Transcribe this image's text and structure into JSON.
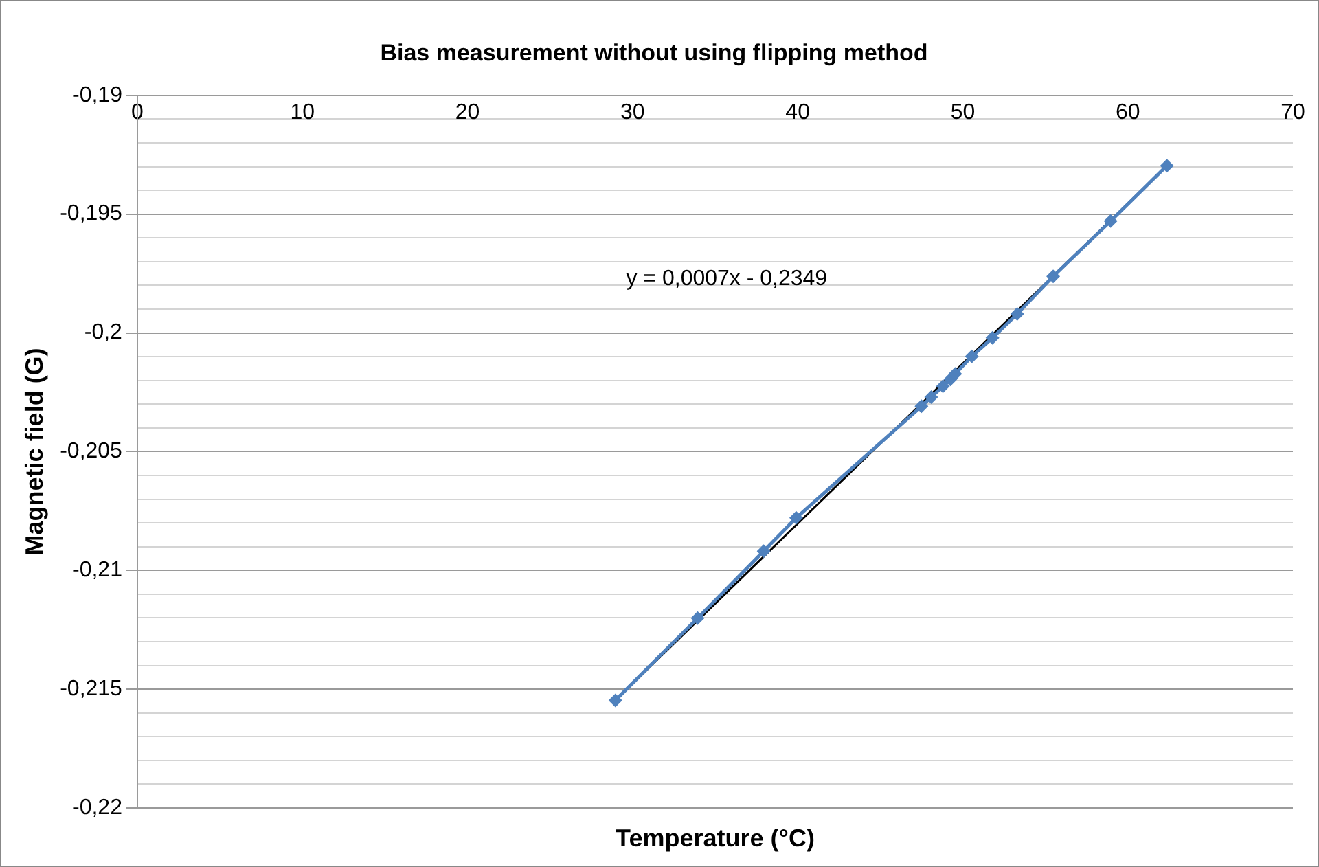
{
  "chart_data": {
    "type": "line",
    "title": "Bias measurement without using flipping method",
    "xlabel": "Temperature (°C)",
    "ylabel": "Magnetic field (G)",
    "annotations": [
      "y = 0,0007x - 0,2349"
    ],
    "series": [
      {
        "type": "line",
        "color": "#4f81bd",
        "marker": "diamond",
        "x": [
          28.96,
          33.94,
          37.94,
          39.91,
          47.5,
          48.09,
          48.8,
          49.25,
          49.54,
          50.55,
          51.8,
          53.3,
          55.48,
          58.96,
          62.37
        ],
        "values": [
          -0.21547,
          -0.21201,
          -0.20919,
          -0.20779,
          -0.20309,
          -0.2027,
          -0.20225,
          -0.20196,
          -0.20173,
          -0.20099,
          -0.20021,
          -0.1992,
          -0.19762,
          -0.19529,
          -0.19296
        ]
      },
      {
        "type": "line",
        "color": "#000000",
        "marker": "none",
        "x": [
          28.96,
          62.37
        ],
        "values": [
          -0.21547,
          -0.19296
        ]
      }
    ],
    "xlim": [
      0,
      70
    ],
    "xticks": [
      0,
      10,
      20,
      30,
      40,
      50,
      60,
      70
    ],
    "ylim": [
      -0.22,
      -0.19
    ],
    "yticks": [
      {
        "value": -0.22,
        "label": "-0,22"
      },
      {
        "value": -0.219,
        "label": null
      },
      {
        "value": -0.218,
        "label": null
      },
      {
        "value": -0.217,
        "label": null
      },
      {
        "value": -0.216,
        "label": null
      },
      {
        "value": -0.215,
        "label": "-0,215"
      },
      {
        "value": -0.214,
        "label": null
      },
      {
        "value": -0.213,
        "label": null
      },
      {
        "value": -0.212,
        "label": null
      },
      {
        "value": -0.211,
        "label": null
      },
      {
        "value": -0.21,
        "label": "-0,21"
      },
      {
        "value": -0.209,
        "label": null
      },
      {
        "value": -0.208,
        "label": null
      },
      {
        "value": -0.207,
        "label": null
      },
      {
        "value": -0.206,
        "label": null
      },
      {
        "value": -0.205,
        "label": "-0,205"
      },
      {
        "value": -0.204,
        "label": null
      },
      {
        "value": -0.203,
        "label": null
      },
      {
        "value": -0.202,
        "label": null
      },
      {
        "value": -0.201,
        "label": null
      },
      {
        "value": -0.2,
        "label": "-0,2"
      },
      {
        "value": -0.199,
        "label": null
      },
      {
        "value": -0.198,
        "label": null
      },
      {
        "value": -0.197,
        "label": null
      },
      {
        "value": -0.196,
        "label": null
      },
      {
        "value": -0.195,
        "label": "-0,195"
      },
      {
        "value": -0.194,
        "label": null
      },
      {
        "value": -0.193,
        "label": null
      },
      {
        "value": -0.192,
        "label": null
      },
      {
        "value": -0.191,
        "label": null
      },
      {
        "value": -0.19,
        "label": "-0,19"
      }
    ],
    "grid": "y",
    "legend": false
  }
}
